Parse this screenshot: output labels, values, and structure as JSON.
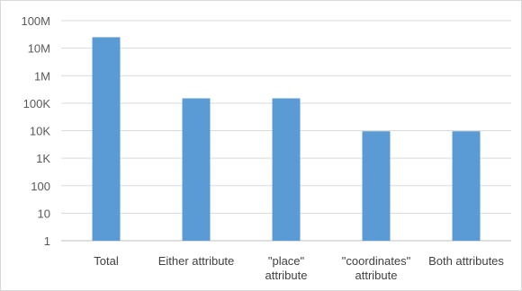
{
  "chart_data": {
    "type": "bar",
    "yscale": "log",
    "ylim": [
      1,
      100000000
    ],
    "grid": true,
    "title": "",
    "xlabel": "",
    "ylabel": "",
    "ytick_labels": [
      "1",
      "10",
      "100",
      "1K",
      "10K",
      "100K",
      "1M",
      "10M",
      "100M"
    ],
    "categories": [
      [
        "Total"
      ],
      [
        "Either attribute"
      ],
      [
        "\"place\"",
        "attribute"
      ],
      [
        "\"coordinates\"",
        "attribute"
      ],
      [
        "Both attributes"
      ]
    ],
    "values": [
      25000000,
      150000,
      150000,
      9500,
      9500
    ],
    "bar_color": "#5b9bd5",
    "grid_color": "#d9d9d9"
  }
}
